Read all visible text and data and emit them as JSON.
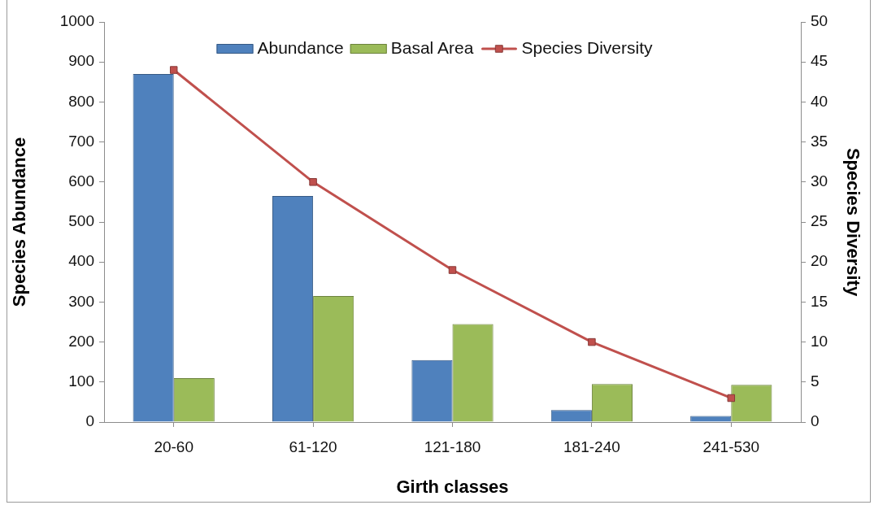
{
  "chart_data": {
    "type": "bar",
    "categories": [
      "20-60",
      "61-120",
      "121-180",
      "181-240",
      "241-530"
    ],
    "xlabel": "Girth classes",
    "ylabel": "Species Abundance",
    "y2label": "Species Diversity",
    "series": [
      {
        "name": "Abundance",
        "color": "#4f81bd",
        "values": [
          870,
          565,
          155,
          30,
          15
        ]
      },
      {
        "name": "Basal Area",
        "color": "#9bbb59",
        "values": [
          110,
          315,
          245,
          95,
          93
        ]
      },
      {
        "name": "Species Diversity",
        "type": "line",
        "axis": "y2",
        "color": "#c0504d",
        "values": [
          44,
          30,
          19,
          10,
          3
        ]
      }
    ],
    "ylim": [
      0,
      1000
    ],
    "yticks": [
      0,
      100,
      200,
      300,
      400,
      500,
      600,
      700,
      800,
      900,
      1000
    ],
    "y2lim": [
      0,
      50
    ],
    "y2ticks": [
      0,
      5,
      10,
      15,
      20,
      25,
      30,
      35,
      40,
      45,
      50
    ],
    "legend": "top",
    "marker": "square",
    "grid": false
  }
}
